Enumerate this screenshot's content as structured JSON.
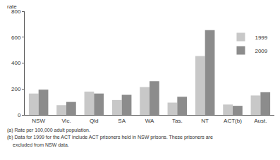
{
  "chart_data": {
    "type": "bar",
    "y_label": "rate",
    "categories": [
      "NSW",
      "Vic.",
      "Qld",
      "SA",
      "WA",
      "Tas.",
      "NT",
      "ACT(b)",
      "Aust."
    ],
    "series": [
      {
        "name": "1999",
        "color": "#c8c8c8",
        "values": [
          165,
          75,
          180,
          115,
          215,
          95,
          455,
          80,
          150
        ]
      },
      {
        "name": "2009",
        "color": "#8c8c8c",
        "values": [
          195,
          100,
          165,
          155,
          260,
          140,
          655,
          70,
          175
        ]
      }
    ],
    "ylim": [
      0,
      800
    ],
    "yticks": [
      0,
      200,
      400,
      600,
      800
    ],
    "grid": true,
    "legend": "upper right",
    "footnotes": [
      "(a) Rate per 100,000 adult population.",
      "(b) Data for 1999 for the ACT include ACT prisoners held in NSW prisons. These prisoners are",
      "excluded from NSW data."
    ]
  }
}
